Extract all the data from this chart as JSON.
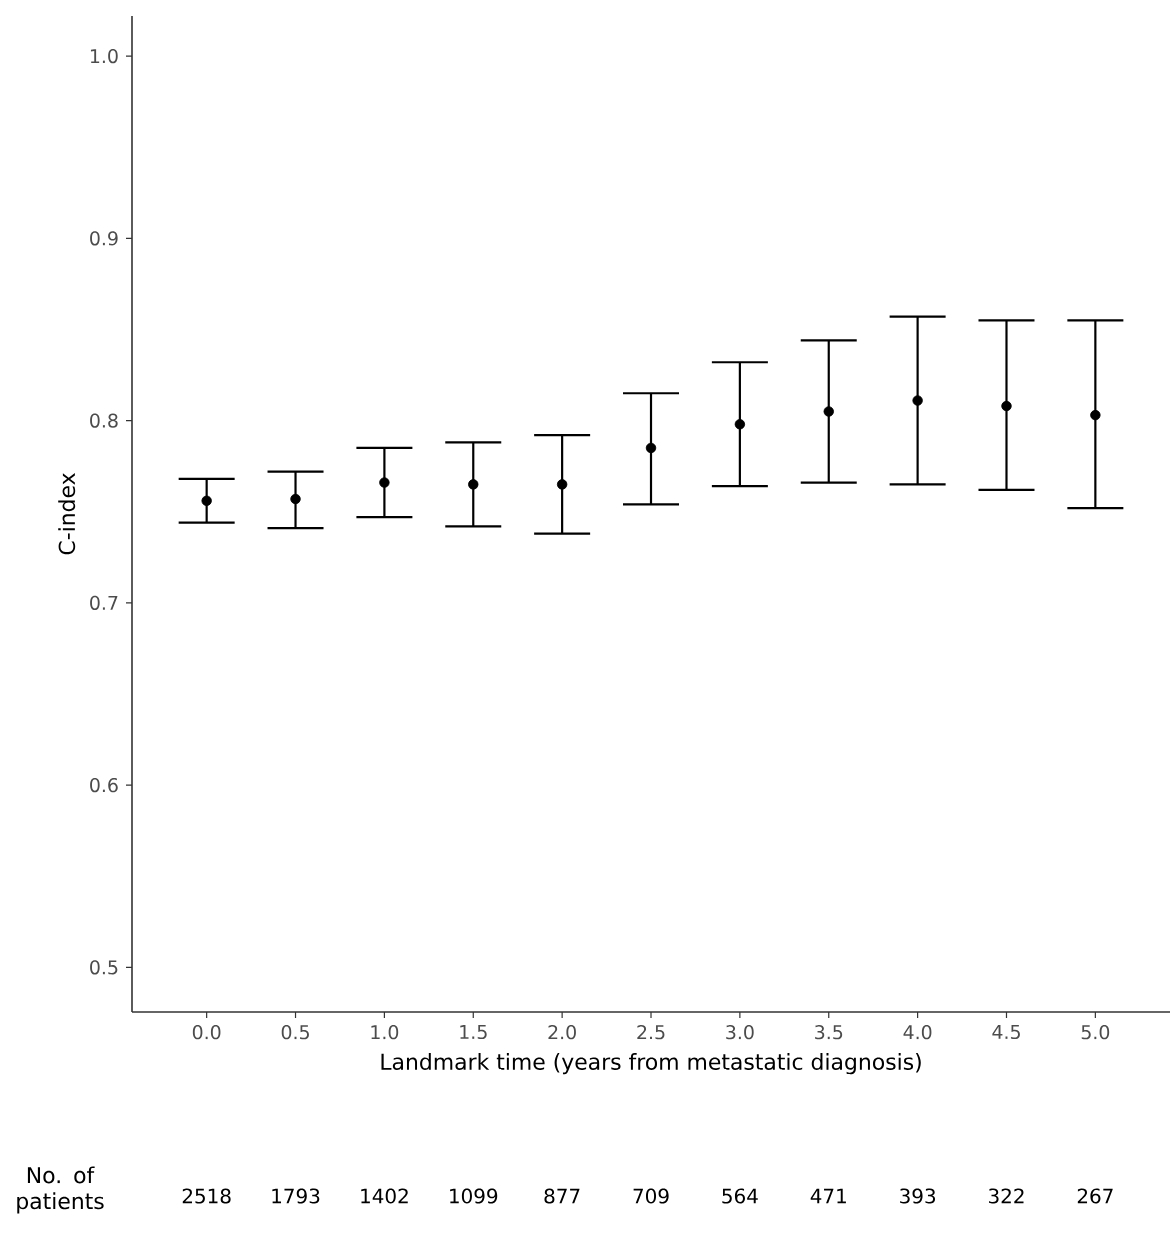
{
  "chart_data": {
    "type": "scatter",
    "xlabel": "Landmark time (years from metastatic diagnosis)",
    "ylabel": "C-index",
    "x": [
      0,
      0.5,
      1,
      1.5,
      2,
      2.5,
      3,
      3.5,
      4,
      4.5,
      5
    ],
    "series": [
      {
        "color": "#000000",
        "values": [
          0.756,
          0.757,
          0.766,
          0.765,
          0.765,
          0.785,
          0.798,
          0.805,
          0.811,
          0.808,
          0.803
        ],
        "errors": [
          [
            0.744,
            0.768
          ],
          [
            0.741,
            0.772
          ],
          [
            0.747,
            0.785
          ],
          [
            0.742,
            0.788
          ],
          [
            0.738,
            0.792
          ],
          [
            0.754,
            0.815
          ],
          [
            0.764,
            0.832
          ],
          [
            0.766,
            0.844
          ],
          [
            0.765,
            0.857
          ],
          [
            0.762,
            0.855
          ],
          [
            0.752,
            0.855
          ]
        ]
      }
    ],
    "marker": "circle",
    "grid": false,
    "xlim": [
      -0.42,
      5.42
    ],
    "ylim": [
      0.4755,
      1.022
    ],
    "xticks": [
      {
        "value": 0,
        "label": "0.0"
      },
      0.5,
      {
        "value": 1,
        "label": "1.0"
      },
      1.5,
      {
        "value": 2,
        "label": "2.0"
      },
      2.5,
      {
        "value": 3,
        "label": "3.0"
      },
      3.5,
      {
        "value": 4,
        "label": "4.0"
      },
      4.5,
      {
        "value": 5,
        "label": "5.0"
      }
    ],
    "yticks": [
      0.5,
      0.6,
      0.7,
      0.8,
      0.9,
      {
        "value": 1,
        "label": "1.0"
      }
    ],
    "annotations": [
      "No. of patients",
      "2518",
      "1793",
      "1402",
      "1099",
      "877",
      "709",
      "564",
      "471",
      "393",
      "322",
      "267"
    ]
  }
}
